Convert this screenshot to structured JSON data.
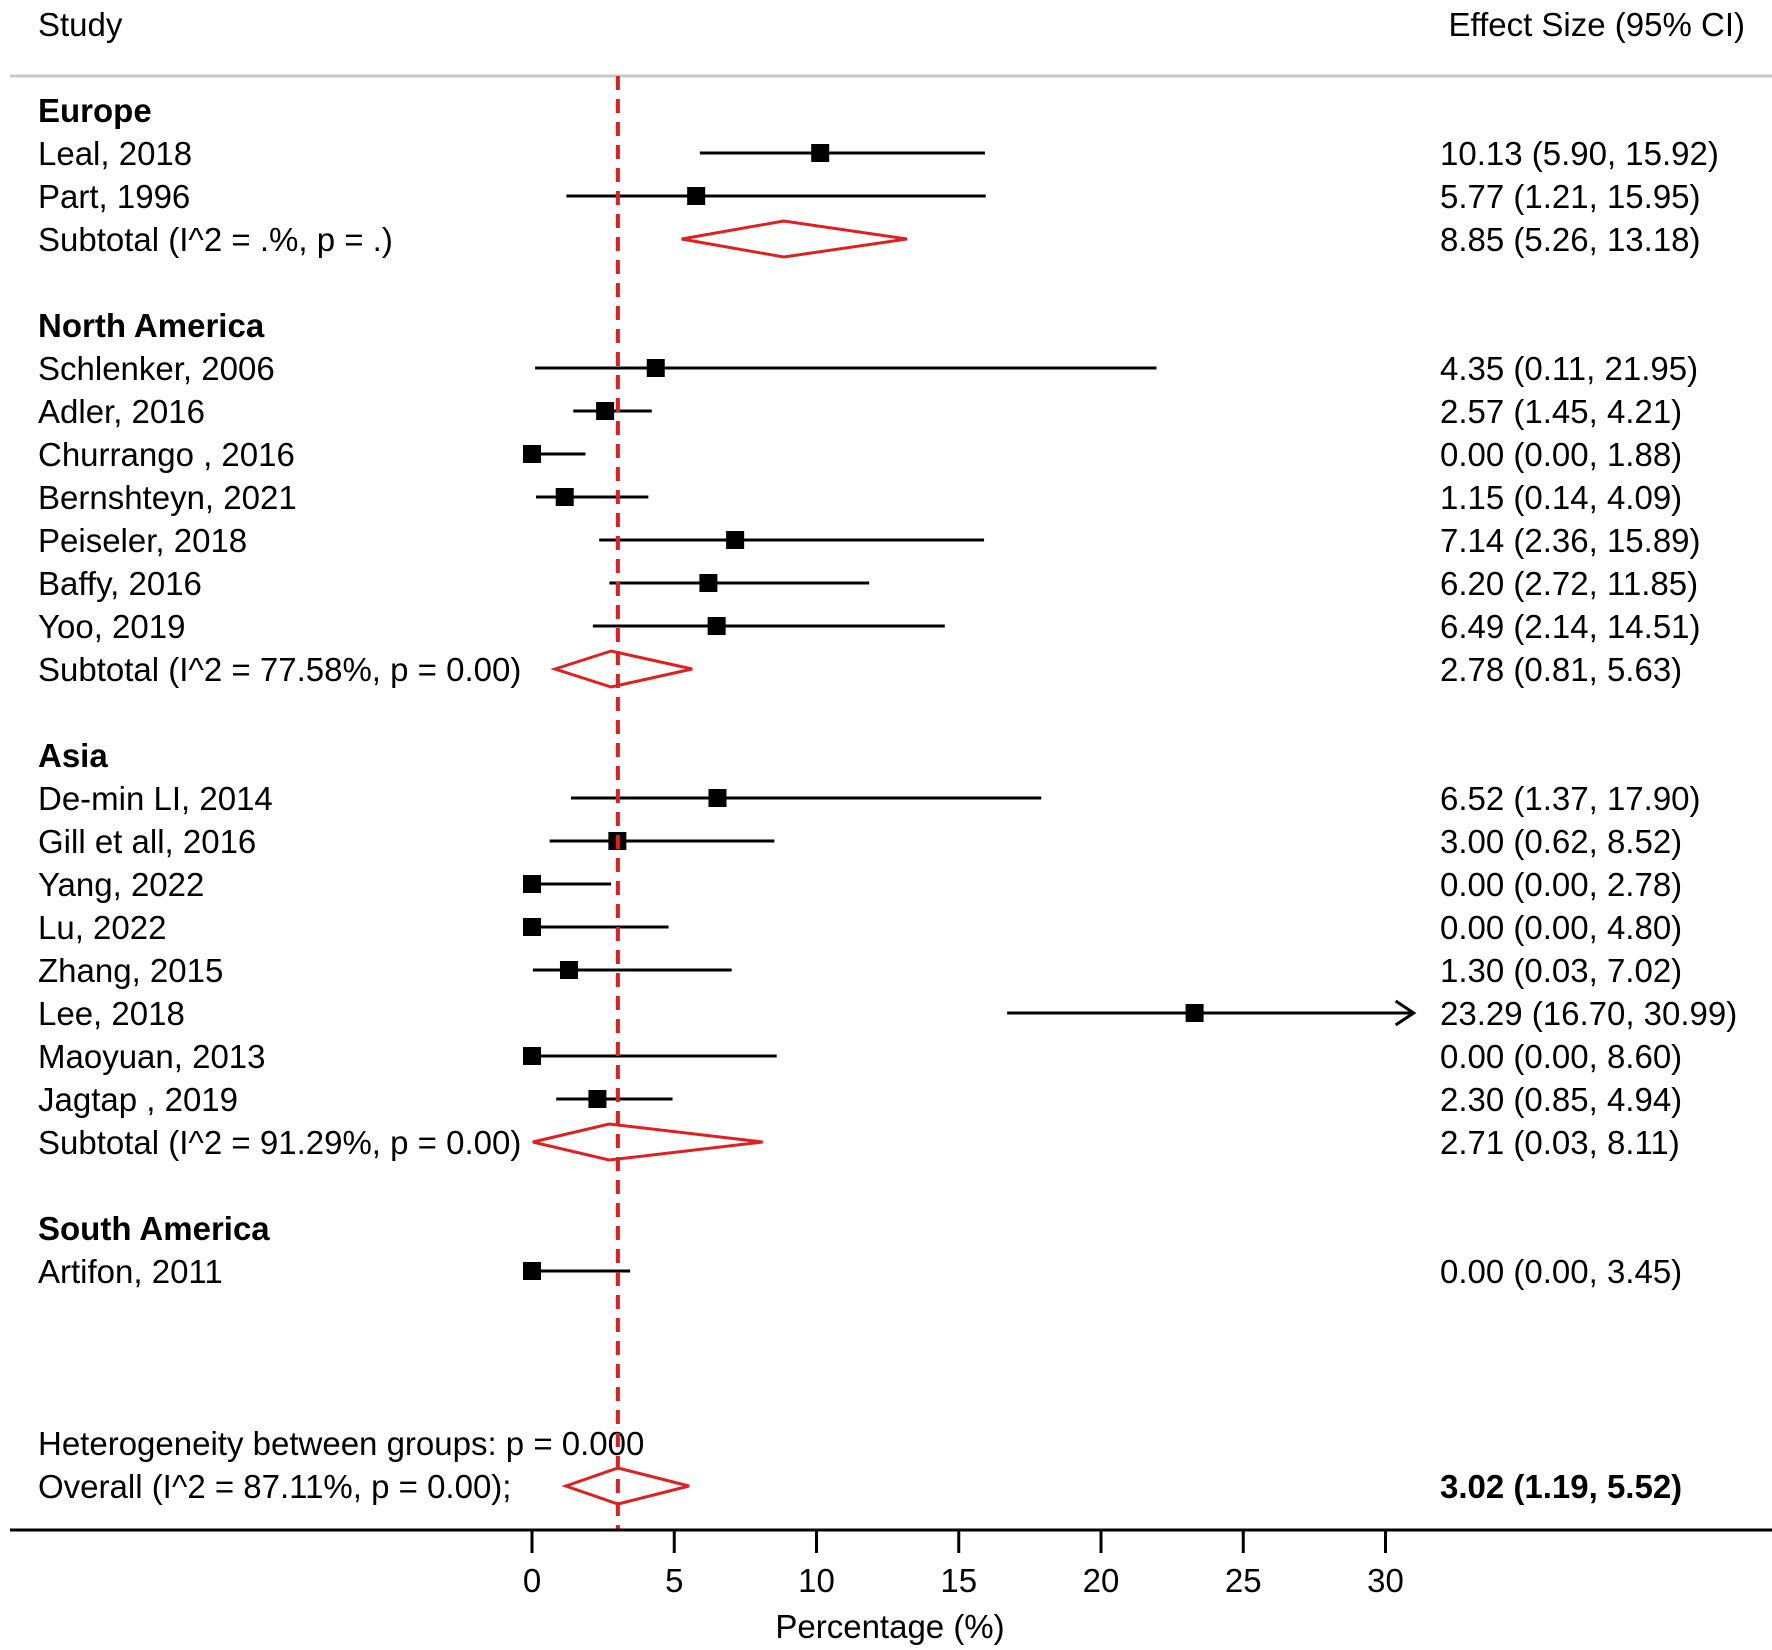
{
  "headers": {
    "study": "Study",
    "effect": "Effect Size (95% CI)"
  },
  "chart_data": {
    "type": "forest",
    "xlabel": "Percentage (%)",
    "xlim": [
      0,
      30
    ],
    "xticks": [
      0,
      5,
      10,
      15,
      20,
      25,
      30
    ],
    "reference_line": 3.02,
    "groups": [
      {
        "name": "Europe",
        "studies": [
          {
            "label": "Leal, 2018",
            "es": 10.13,
            "lo": 5.9,
            "hi": 15.92,
            "text": "10.13 (5.90, 15.92)"
          },
          {
            "label": "Part, 1996",
            "es": 5.77,
            "lo": 1.21,
            "hi": 15.95,
            "text": "5.77 (1.21, 15.95)"
          }
        ],
        "subtotal": {
          "label": "Subtotal  (I^2 = .%, p = .)",
          "es": 8.85,
          "lo": 5.26,
          "hi": 13.18,
          "text": "8.85 (5.26, 13.18)"
        }
      },
      {
        "name": "North America",
        "studies": [
          {
            "label": "Schlenker, 2006",
            "es": 4.35,
            "lo": 0.11,
            "hi": 21.95,
            "text": "4.35 (0.11, 21.95)"
          },
          {
            "label": "Adler, 2016",
            "es": 2.57,
            "lo": 1.45,
            "hi": 4.21,
            "text": "2.57 (1.45, 4.21)"
          },
          {
            "label": "Churrango , 2016",
            "es": 0.0,
            "lo": 0.0,
            "hi": 1.88,
            "text": "0.00 (0.00, 1.88)"
          },
          {
            "label": "Bernshteyn, 2021",
            "es": 1.15,
            "lo": 0.14,
            "hi": 4.09,
            "text": "1.15 (0.14, 4.09)"
          },
          {
            "label": "Peiseler, 2018",
            "es": 7.14,
            "lo": 2.36,
            "hi": 15.89,
            "text": "7.14 (2.36, 15.89)"
          },
          {
            "label": "Baffy, 2016",
            "es": 6.2,
            "lo": 2.72,
            "hi": 11.85,
            "text": "6.20 (2.72, 11.85)"
          },
          {
            "label": "Yoo, 2019",
            "es": 6.49,
            "lo": 2.14,
            "hi": 14.51,
            "text": "6.49 (2.14, 14.51)"
          }
        ],
        "subtotal": {
          "label": "Subtotal  (I^2 = 77.58%, p = 0.00)",
          "es": 2.78,
          "lo": 0.81,
          "hi": 5.63,
          "text": "2.78 (0.81, 5.63)"
        }
      },
      {
        "name": "Asia",
        "studies": [
          {
            "label": "De-min LI, 2014",
            "es": 6.52,
            "lo": 1.37,
            "hi": 17.9,
            "text": "6.52 (1.37, 17.90)"
          },
          {
            "label": "Gill et all, 2016",
            "es": 3.0,
            "lo": 0.62,
            "hi": 8.52,
            "text": "3.00 (0.62, 8.52)"
          },
          {
            "label": "Yang, 2022",
            "es": 0.0,
            "lo": 0.0,
            "hi": 2.78,
            "text": "0.00 (0.00, 2.78)"
          },
          {
            "label": "Lu, 2022",
            "es": 0.0,
            "lo": 0.0,
            "hi": 4.8,
            "text": "0.00 (0.00, 4.80)"
          },
          {
            "label": "Zhang, 2015",
            "es": 1.3,
            "lo": 0.03,
            "hi": 7.02,
            "text": "1.30 (0.03, 7.02)"
          },
          {
            "label": "Lee, 2018",
            "es": 23.29,
            "lo": 16.7,
            "hi": 30.99,
            "text": "23.29 (16.70, 30.99)",
            "arrow": true
          },
          {
            "label": "Maoyuan, 2013",
            "es": 0.0,
            "lo": 0.0,
            "hi": 8.6,
            "text": "0.00 (0.00, 8.60)"
          },
          {
            "label": "Jagtap , 2019",
            "es": 2.3,
            "lo": 0.85,
            "hi": 4.94,
            "text": "2.30 (0.85, 4.94)"
          }
        ],
        "subtotal": {
          "label": "Subtotal  (I^2 = 91.29%, p = 0.00)",
          "es": 2.71,
          "lo": 0.03,
          "hi": 8.11,
          "text": "2.71 (0.03, 8.11)"
        }
      },
      {
        "name": "South America",
        "studies": [
          {
            "label": "Artifon, 2011",
            "es": 0.0,
            "lo": 0.0,
            "hi": 3.45,
            "text": "0.00 (0.00, 3.45)"
          }
        ],
        "subtotal": null
      }
    ],
    "heterogeneity": "Heterogeneity between groups: p = 0.000",
    "overall": {
      "label": "Overall  (I^2 = 87.11%, p = 0.00);",
      "es": 3.02,
      "lo": 1.19,
      "hi": 5.52,
      "text": "3.02 (1.19, 5.52)"
    }
  },
  "colors": {
    "diamond": "#e02020",
    "refline": "#e02020",
    "marker": "#000000",
    "divider": "#c8c8c8"
  }
}
